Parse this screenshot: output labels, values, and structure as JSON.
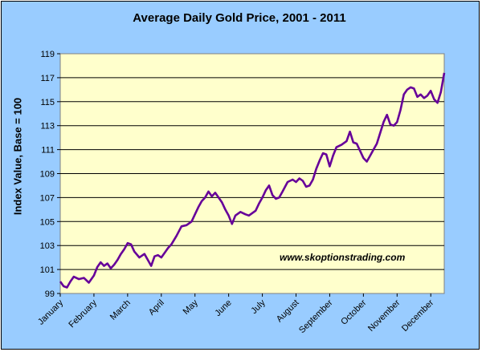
{
  "chart_data": {
    "type": "line",
    "title": "Average Daily Gold Price, 2001 - 2011",
    "ylabel": "Index Value, Base = 100",
    "xlabel": "",
    "ylim": [
      99,
      119
    ],
    "yticks": [
      99,
      101,
      103,
      105,
      107,
      109,
      111,
      113,
      115,
      117,
      119
    ],
    "categories": [
      "January",
      "February",
      "March",
      "April",
      "May",
      "June",
      "July",
      "August",
      "September",
      "October",
      "November",
      "December"
    ],
    "grid": "horizontal",
    "legend": "none",
    "watermark": "www.skoptionstrading.com",
    "series": [
      {
        "color": "#660099",
        "x": [
          0,
          0.1,
          0.2,
          0.3,
          0.4,
          0.55,
          0.7,
          0.85,
          1.0,
          1.1,
          1.2,
          1.3,
          1.4,
          1.5,
          1.6,
          1.7,
          1.8,
          1.9,
          2.0,
          2.1,
          2.2,
          2.35,
          2.5,
          2.6,
          2.7,
          2.8,
          2.9,
          3.0,
          3.1,
          3.2,
          3.3,
          3.45,
          3.6,
          3.75,
          3.9,
          4.0,
          4.1,
          4.2,
          4.3,
          4.4,
          4.5,
          4.6,
          4.7,
          4.8,
          4.9,
          5.0,
          5.1,
          5.2,
          5.35,
          5.5,
          5.6,
          5.7,
          5.8,
          5.9,
          6.0,
          6.1,
          6.2,
          6.3,
          6.4,
          6.5,
          6.6,
          6.75,
          6.9,
          7.0,
          7.1,
          7.2,
          7.3,
          7.4,
          7.5,
          7.6,
          7.7,
          7.8,
          7.9,
          8.0,
          8.1,
          8.2,
          8.35,
          8.5,
          8.6,
          8.7,
          8.8,
          8.9,
          9.0,
          9.1,
          9.2,
          9.3,
          9.4,
          9.5,
          9.6,
          9.7,
          9.8,
          9.9,
          10.0,
          10.1,
          10.2,
          10.3,
          10.4,
          10.5,
          10.6,
          10.7,
          10.8,
          10.9,
          11.0,
          11.1,
          11.2,
          11.3,
          11.4
        ],
        "y": [
          100.0,
          99.6,
          99.5,
          100.0,
          100.4,
          100.2,
          100.3,
          99.9,
          100.5,
          101.2,
          101.6,
          101.3,
          101.5,
          101.1,
          101.4,
          101.8,
          102.3,
          102.7,
          103.2,
          103.1,
          102.5,
          102.0,
          102.3,
          101.8,
          101.3,
          102.1,
          102.2,
          102.0,
          102.4,
          102.8,
          103.1,
          103.8,
          104.6,
          104.7,
          105.0,
          105.6,
          106.2,
          106.7,
          107.0,
          107.5,
          107.1,
          107.4,
          107.0,
          106.6,
          106.0,
          105.5,
          104.8,
          105.5,
          105.8,
          105.6,
          105.5,
          105.7,
          105.9,
          106.5,
          107.0,
          107.6,
          108.0,
          107.2,
          106.9,
          107.0,
          107.5,
          108.3,
          108.5,
          108.3,
          108.6,
          108.4,
          107.9,
          108.0,
          108.5,
          109.4,
          110.1,
          110.7,
          110.6,
          109.6,
          110.5,
          111.2,
          111.4,
          111.7,
          112.5,
          111.6,
          111.5,
          110.9,
          110.3,
          110.0,
          110.5,
          111.0,
          111.5,
          112.4,
          113.3,
          113.9,
          113.1,
          113.0,
          113.3,
          114.3,
          115.6,
          116.0,
          116.2,
          116.1,
          115.4,
          115.6,
          115.3,
          115.5,
          115.9,
          115.2,
          114.9,
          115.8,
          117.4
        ]
      }
    ]
  }
}
